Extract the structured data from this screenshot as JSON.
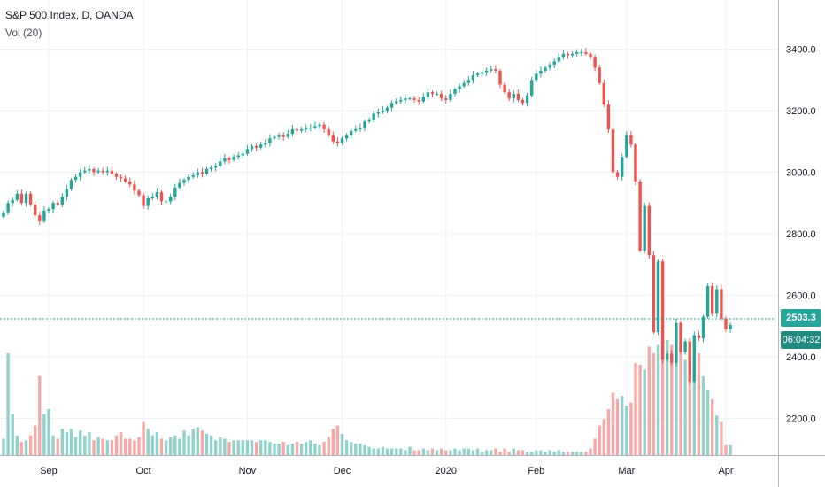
{
  "header": {
    "title": "S&P 500 Index, D, OANDA",
    "volume_label": "Vol (20)"
  },
  "price_badge": {
    "last": "2503.3",
    "countdown": "06:04:32"
  },
  "colors": {
    "up": "#26a69a",
    "down": "#ef5350",
    "vol_up": "#92d2cc",
    "vol_down": "#f7a9a7",
    "grid": "#eef0f3"
  },
  "chart_data": {
    "type": "candlestick",
    "title": "S&P 500 Index, D, OANDA",
    "y_ticks": [
      2200,
      2400,
      2600,
      2800,
      3000,
      3200,
      3400
    ],
    "y_tick_labels": [
      "2200.0",
      "2400.0",
      "2600.0",
      "2800.0",
      "3000.0",
      "3200.0",
      "3400.0"
    ],
    "ylim": [
      2080,
      3560
    ],
    "x_tick_labels": [
      "Sep",
      "Oct",
      "Nov",
      "Dec",
      "2020",
      "Feb",
      "Mar",
      "Apr"
    ],
    "x_tick_index": [
      10,
      31,
      54,
      75,
      98,
      118,
      138,
      160
    ],
    "last_price": 2503.3,
    "close": [
      2870,
      2900,
      2910,
      2930,
      2900,
      2930,
      2895,
      2860,
      2840,
      2875,
      2880,
      2900,
      2895,
      2920,
      2945,
      2975,
      2985,
      3000,
      3005,
      3010,
      3000,
      3005,
      3000,
      3005,
      2995,
      2985,
      2980,
      2970,
      2960,
      2940,
      2925,
      2890,
      2915,
      2920,
      2935,
      2905,
      2905,
      2920,
      2950,
      2965,
      2975,
      2985,
      2990,
      3000,
      2995,
      3010,
      3015,
      3020,
      3035,
      3045,
      3040,
      3050,
      3055,
      3060,
      3075,
      3085,
      3080,
      3090,
      3095,
      3110,
      3115,
      3120,
      3115,
      3125,
      3140,
      3135,
      3140,
      3145,
      3145,
      3150,
      3155,
      3140,
      3120,
      3100,
      3095,
      3110,
      3120,
      3135,
      3140,
      3145,
      3165,
      3170,
      3190,
      3195,
      3200,
      3210,
      3225,
      3230,
      3235,
      3240,
      3240,
      3235,
      3230,
      3245,
      3260,
      3255,
      3255,
      3240,
      3235,
      3255,
      3270,
      3280,
      3290,
      3300,
      3315,
      3320,
      3325,
      3330,
      3335,
      3330,
      3285,
      3260,
      3240,
      3255,
      3235,
      3225,
      3250,
      3300,
      3320,
      3330,
      3340,
      3350,
      3360,
      3375,
      3385,
      3380,
      3385,
      3390,
      3390,
      3385,
      3375,
      3340,
      3290,
      3220,
      3140,
      3000,
      2985,
      3050,
      3120,
      3090,
      2970,
      2745,
      2890,
      2730,
      2480,
      2710,
      2390,
      2410,
      2380,
      2510,
      2415,
      2450,
      2320,
      2470,
      2460,
      2530,
      2630,
      2540,
      2620,
      2525,
      2490,
      2503
    ],
    "volume": [
      10,
      62,
      25,
      12,
      8,
      9,
      12,
      18,
      48,
      25,
      28,
      12,
      10,
      16,
      14,
      16,
      11,
      15,
      12,
      14,
      9,
      11,
      10,
      9,
      9,
      12,
      14,
      10,
      10,
      9,
      11,
      20,
      16,
      12,
      14,
      10,
      9,
      11,
      12,
      10,
      15,
      12,
      16,
      17,
      15,
      13,
      12,
      9,
      11,
      10,
      8,
      9,
      9,
      9,
      9,
      9,
      8,
      9,
      9,
      8,
      7,
      7,
      8,
      6,
      7,
      8,
      7,
      8,
      9,
      7,
      6,
      8,
      11,
      16,
      18,
      13,
      9,
      8,
      7,
      7,
      6,
      5,
      4,
      4,
      5,
      4,
      4,
      4,
      4,
      3,
      5,
      3,
      3,
      4,
      3,
      4,
      3,
      4,
      3,
      3,
      4,
      3,
      4,
      4,
      3,
      4,
      2,
      3,
      3,
      4,
      2,
      4,
      2,
      4,
      3,
      3,
      2,
      2,
      3,
      3,
      2,
      3,
      2,
      3,
      2,
      2,
      2,
      2,
      2,
      2,
      4,
      10,
      18,
      22,
      28,
      38,
      34,
      36,
      30,
      32,
      56,
      55,
      52,
      66,
      62,
      67,
      70,
      70,
      67,
      64,
      69,
      58,
      62,
      55,
      62,
      48,
      40,
      34,
      24,
      20,
      6,
      6
    ],
    "volume_label": "Vol (20)"
  }
}
